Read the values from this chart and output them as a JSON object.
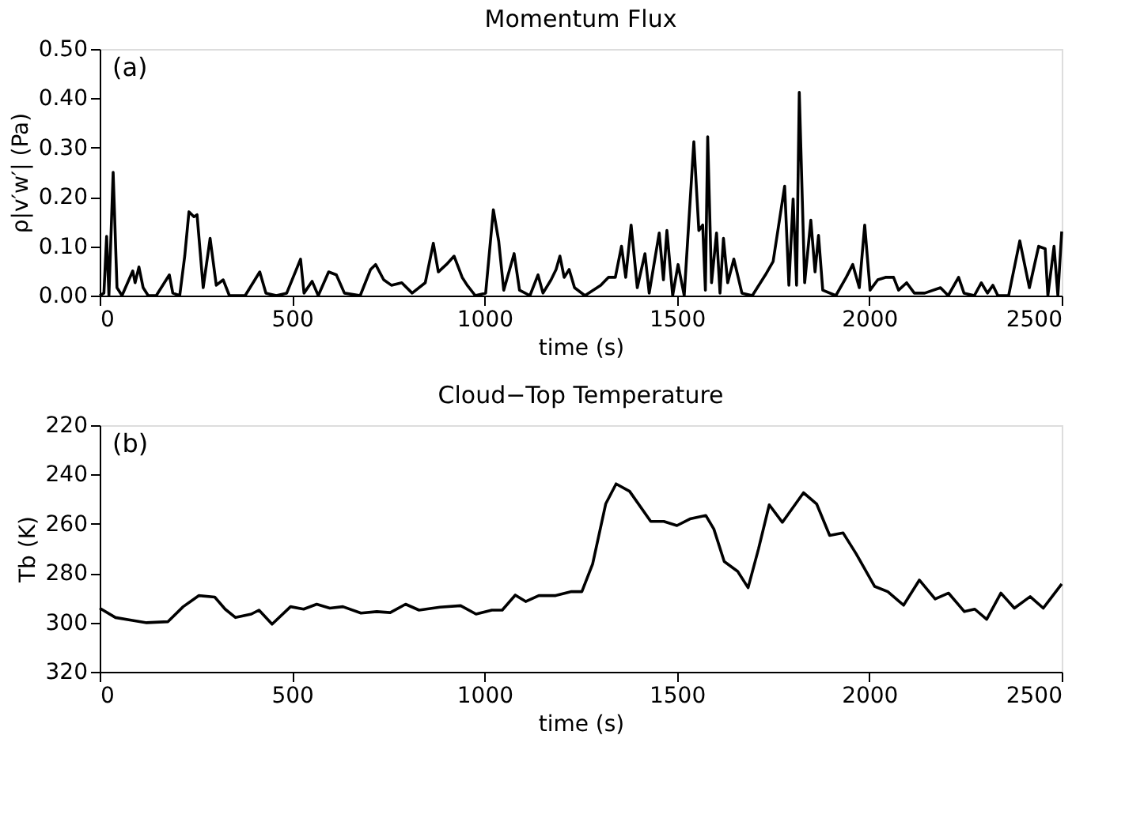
{
  "chart_data": [
    {
      "type": "line",
      "title": "Momentum Flux",
      "xlabel": "time (s)",
      "ylabel": "ρ|v′w′| (Pa)",
      "annotations": [
        "(a)"
      ],
      "grid": false,
      "marker": "none",
      "line_style": "solid",
      "xlim": [
        0,
        2500
      ],
      "xticks": [
        0,
        500,
        1000,
        1500,
        2000,
        2500
      ],
      "ylim": [
        0,
        0.5
      ],
      "yticks": [
        {
          "value": 0,
          "label": "0.00"
        },
        {
          "value": 0.1,
          "label": "0.10"
        },
        {
          "value": 0.2,
          "label": "0.20"
        },
        {
          "value": 0.3,
          "label": "0.30"
        },
        {
          "value": 0.4,
          "label": "0.40"
        },
        {
          "value": 0.5,
          "label": "0.50"
        }
      ],
      "series": [
        {
          "color": "#000000",
          "x": [
            0,
            11,
            18,
            24,
            35,
            45,
            58,
            86,
            92,
            102,
            113,
            126,
            147,
            181,
            190,
            208,
            221,
            232,
            245,
            253,
            269,
            287,
            303,
            321,
            337,
            378,
            416,
            432,
            459,
            486,
            522,
            531,
            552,
            568,
            595,
            615,
            636,
            677,
            704,
            717,
            738,
            758,
            785,
            812,
            846,
            867,
            880,
            901,
            921,
            942,
            955,
            976,
            1003,
            1023,
            1037,
            1050,
            1077,
            1091,
            1118,
            1139,
            1152,
            1173,
            1186,
            1196,
            1207,
            1220,
            1234,
            1261,
            1302,
            1322,
            1340,
            1356,
            1367,
            1381,
            1397,
            1417,
            1428,
            1454,
            1465,
            1474,
            1489,
            1503,
            1519,
            1544,
            1557,
            1567,
            1574,
            1580,
            1590,
            1603,
            1612,
            1621,
            1632,
            1648,
            1669,
            1696,
            1730,
            1750,
            1780,
            1791,
            1802,
            1811,
            1818,
            1832,
            1848,
            1859,
            1868,
            1879,
            1913,
            1940,
            1957,
            1974,
            1988,
            2002,
            2022,
            2042,
            2063,
            2076,
            2097,
            2117,
            2144,
            2185,
            2205,
            2232,
            2246,
            2273,
            2291,
            2307,
            2321,
            2334,
            2362,
            2391,
            2416,
            2440,
            2457,
            2464,
            2480,
            2490,
            2500
          ],
          "values": [
            0.0,
            0.005,
            0.12,
            0.0,
            0.25,
            0.016,
            0.0,
            0.05,
            0.026,
            0.058,
            0.016,
            0.0,
            0.0,
            0.042,
            0.005,
            0.0,
            0.08,
            0.17,
            0.16,
            0.164,
            0.016,
            0.116,
            0.021,
            0.032,
            0.0,
            0.0,
            0.048,
            0.005,
            0.0,
            0.005,
            0.074,
            0.005,
            0.029,
            0.0,
            0.048,
            0.042,
            0.005,
            0.0,
            0.053,
            0.063,
            0.032,
            0.021,
            0.026,
            0.005,
            0.026,
            0.106,
            0.048,
            0.063,
            0.08,
            0.037,
            0.021,
            0.0,
            0.005,
            0.174,
            0.11,
            0.011,
            0.085,
            0.011,
            0.0,
            0.042,
            0.005,
            0.032,
            0.053,
            0.08,
            0.037,
            0.053,
            0.016,
            0.0,
            0.021,
            0.037,
            0.037,
            0.1,
            0.037,
            0.143,
            0.016,
            0.085,
            0.005,
            0.127,
            0.032,
            0.132,
            0.0,
            0.063,
            0.0,
            0.312,
            0.132,
            0.143,
            0.011,
            0.322,
            0.026,
            0.127,
            0.005,
            0.116,
            0.026,
            0.074,
            0.005,
            0.0,
            0.042,
            0.069,
            0.222,
            0.021,
            0.196,
            0.021,
            0.412,
            0.026,
            0.153,
            0.048,
            0.122,
            0.011,
            0.0,
            0.037,
            0.063,
            0.016,
            0.143,
            0.011,
            0.032,
            0.037,
            0.037,
            0.011,
            0.026,
            0.005,
            0.005,
            0.016,
            0.0,
            0.037,
            0.005,
            0.0,
            0.026,
            0.005,
            0.021,
            0.0,
            0.0,
            0.111,
            0.016,
            0.1,
            0.095,
            0.0,
            0.1,
            0.0,
            0.13
          ]
        }
      ]
    },
    {
      "type": "line",
      "title": "Cloud−Top Temperature",
      "xlabel": "time (s)",
      "ylabel": "Tb (K)",
      "annotations": [
        "(b)"
      ],
      "grid": false,
      "marker": "none",
      "line_style": "solid",
      "xlim": [
        0,
        2500
      ],
      "xticks": [
        0,
        500,
        1000,
        1500,
        2000,
        2500
      ],
      "ylim": [
        320,
        220
      ],
      "yticks": [
        220,
        240,
        260,
        280,
        300,
        320
      ],
      "series": [
        {
          "color": "#000000",
          "x": [
            0,
            41,
            82,
            122,
            177,
            217,
            258,
            299,
            326,
            353,
            394,
            414,
            448,
            496,
            530,
            564,
            598,
            632,
            679,
            720,
            755,
            795,
            830,
            884,
            938,
            978,
            1019,
            1046,
            1080,
            1107,
            1141,
            1185,
            1226,
            1253,
            1281,
            1315,
            1342,
            1377,
            1432,
            1466,
            1500,
            1534,
            1575,
            1596,
            1623,
            1658,
            1685,
            1712,
            1740,
            1774,
            1829,
            1863,
            1897,
            1932,
            1966,
            2014,
            2048,
            2089,
            2130,
            2171,
            2206,
            2247,
            2274,
            2305,
            2342,
            2377,
            2418,
            2452,
            2500
          ],
          "values": [
            294.2,
            298.0,
            299.1,
            300.1,
            299.7,
            293.6,
            289.1,
            289.7,
            294.6,
            298.0,
            296.6,
            295.0,
            300.7,
            293.6,
            294.6,
            292.6,
            294.2,
            293.6,
            296.2,
            295.6,
            296.0,
            292.6,
            295.0,
            293.8,
            293.2,
            296.6,
            295.0,
            295.0,
            288.9,
            291.5,
            289.1,
            289.1,
            287.5,
            287.5,
            276.3,
            251.9,
            243.8,
            246.8,
            259.0,
            259.0,
            260.7,
            258.0,
            256.6,
            262.1,
            275.3,
            279.3,
            285.9,
            270.2,
            252.3,
            259.4,
            247.4,
            251.9,
            264.7,
            263.7,
            272.2,
            285.4,
            287.5,
            293.0,
            282.8,
            290.5,
            288.1,
            295.6,
            294.6,
            298.7,
            288.1,
            294.2,
            289.5,
            294.2,
            284.4
          ]
        }
      ]
    }
  ]
}
